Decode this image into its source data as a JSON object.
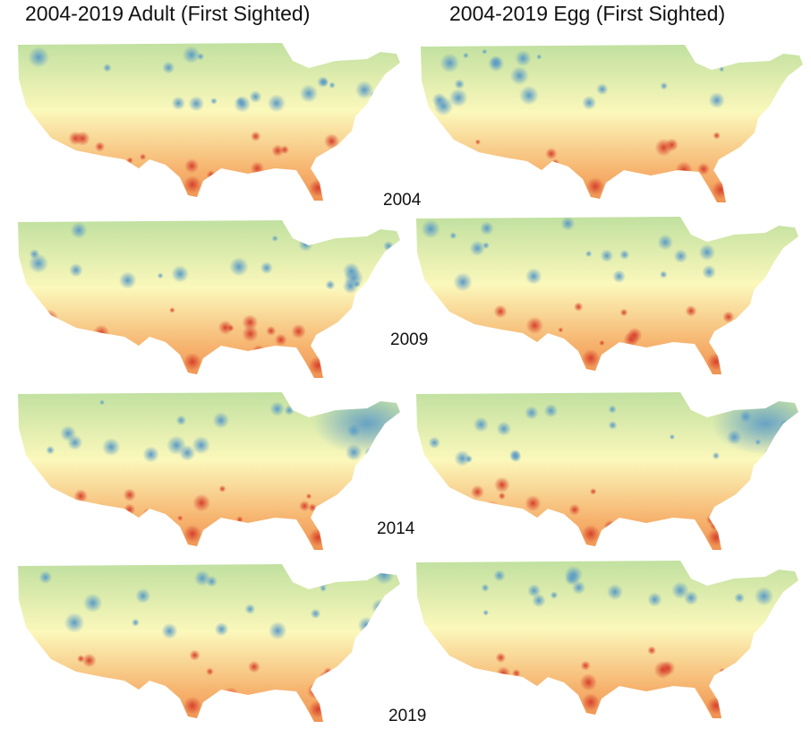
{
  "columns": [
    {
      "title": "2004-2019 Adult (First Sighted)"
    },
    {
      "title": "2004-2019 Egg (First Sighted)"
    }
  ],
  "years": [
    "2004",
    "2009",
    "2014",
    "2019"
  ],
  "colors": {
    "high": "#5b9bc7",
    "north": "#b9dd9c",
    "mid": "#fbf8bb",
    "south": "#f6b36e",
    "low": "#d7402b"
  },
  "color_scale": "diverging red-yellow-green-blue"
}
